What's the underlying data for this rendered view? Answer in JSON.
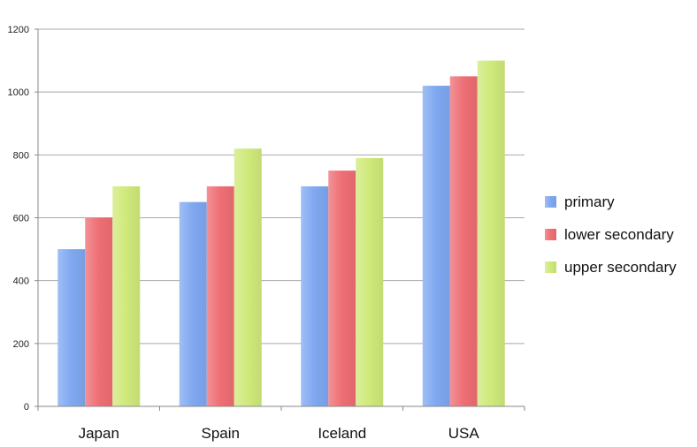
{
  "chart_data": {
    "type": "bar",
    "categories": [
      "Japan",
      "Spain",
      "Iceland",
      "USA"
    ],
    "series": [
      {
        "name": "primary",
        "color": "#7fa8f0",
        "values": [
          500,
          650,
          700,
          1020
        ]
      },
      {
        "name": "lower secondary",
        "color": "#ee6e74",
        "values": [
          600,
          700,
          750,
          1050
        ]
      },
      {
        "name": "upper secondary",
        "color": "#cfe97a",
        "values": [
          700,
          820,
          790,
          1100
        ]
      }
    ],
    "title": "",
    "xlabel": "",
    "ylabel": "",
    "ylim": [
      0,
      1200
    ],
    "yticks": [
      0,
      200,
      400,
      600,
      800,
      1000,
      1200
    ],
    "grid": true,
    "legend_position": "right"
  }
}
